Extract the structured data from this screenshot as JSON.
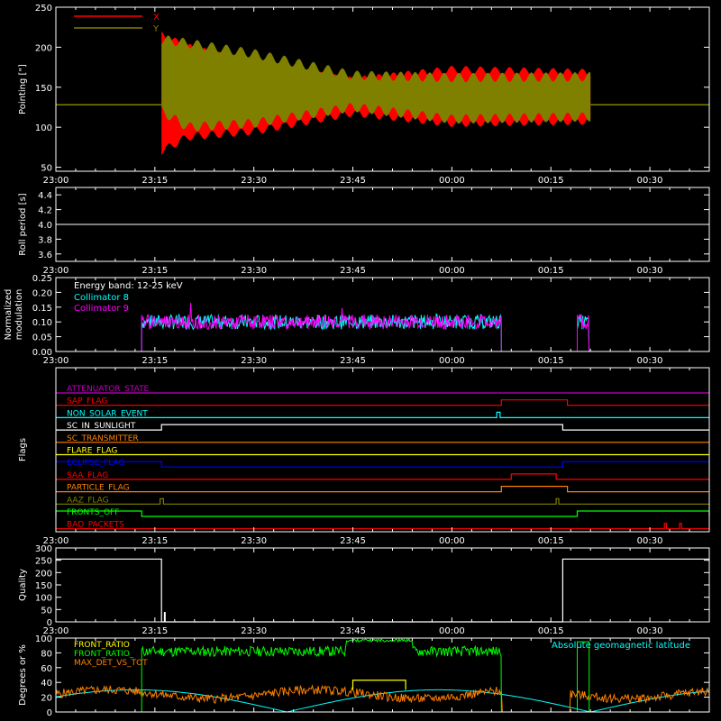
{
  "time_ticks": [
    "23:00",
    "23:15",
    "23:30",
    "23:45",
    "00:00",
    "00:15",
    "00:30"
  ],
  "time_range_minutes": [
    0,
    99
  ],
  "panels": {
    "pointing": {
      "ylabel": "Pointing [\"]",
      "ylim": [
        45,
        250
      ],
      "yticks": [
        "50",
        "100",
        "150",
        "200",
        "250"
      ],
      "legend": [
        {
          "label": "X",
          "color": "#ff0000"
        },
        {
          "label": "Y",
          "color": "#808000"
        }
      ],
      "reference_level": 128,
      "active_range_minutes": [
        16,
        81
      ]
    },
    "roll": {
      "ylabel": "Roll period [s]",
      "ylim": [
        3.5,
        4.5
      ],
      "yticks": [
        "3.6",
        "3.8",
        "4.0",
        "4.2",
        "4.4"
      ],
      "value": 4.0
    },
    "modulation": {
      "ylabel_lines": [
        "Normalized",
        "modulation"
      ],
      "ylim": [
        0,
        0.25
      ],
      "yticks": [
        "0.00",
        "0.05",
        "0.10",
        "0.15",
        "0.20",
        "0.25"
      ],
      "title": "Energy band: 12-25 keV",
      "legend": [
        {
          "label": "Collimator 8",
          "color": "#00ffff"
        },
        {
          "label": "Collimator 9",
          "color": "#ff00ff"
        }
      ],
      "active_ranges_minutes": [
        [
          13,
          67.5
        ],
        [
          79,
          80.8
        ]
      ],
      "level": 0.1
    },
    "flags": {
      "ylabel": "Flags",
      "items": [
        {
          "name": "ATTENUATOR_STATE",
          "color": "#c000c0",
          "segments": []
        },
        {
          "name": "SAP_FLAG",
          "color": "#ff0000",
          "segments": [
            [
              67.5,
              77.5
            ]
          ]
        },
        {
          "name": "NON_SOLAR_EVENT",
          "color": "#00ffff",
          "segments": [
            [
              66.8,
              67.3
            ]
          ]
        },
        {
          "name": "SC_IN_SUNLIGHT",
          "color": "#ffffff",
          "segments": [
            [
              16,
              76.8
            ]
          ]
        },
        {
          "name": "SC_TRANSMITTER",
          "color": "#ff8000",
          "segments": []
        },
        {
          "name": "FLARE_FLAG",
          "color": "#ffff00",
          "segments": []
        },
        {
          "name": "ECLIPSE_FLAG",
          "color": "#0000ff",
          "segments": [
            [
              0,
              16
            ],
            [
              76.8,
              99
            ]
          ]
        },
        {
          "name": "SAA_FLAG",
          "color": "#ff0000",
          "segments": [
            [
              69,
              75.8
            ]
          ]
        },
        {
          "name": "PARTICLE_FLAG",
          "color": "#ff8000",
          "segments": [
            [
              67.5,
              77.5
            ]
          ]
        },
        {
          "name": "AAZ_FLAG",
          "color": "#808000",
          "segments": [
            [
              15.8,
              16.3
            ],
            [
              75.8,
              76.2
            ]
          ]
        },
        {
          "name": "FRONTS_OFF",
          "color": "#00ff00",
          "segments": [
            [
              0,
              13
            ],
            [
              79,
              99
            ]
          ]
        },
        {
          "name": "BAD_PACKETS",
          "color": "#ff0000",
          "segments": [
            [
              92.2,
              92.5
            ],
            [
              94.5,
              94.8
            ]
          ]
        }
      ]
    },
    "quality": {
      "ylabel": "Quality",
      "ylim": [
        0,
        300
      ],
      "yticks": [
        "0",
        "50",
        "100",
        "150",
        "200",
        "250",
        "300"
      ],
      "levels": [
        {
          "from": 0,
          "to": 16,
          "value": 255
        },
        {
          "from": 16,
          "to": 76.8,
          "value": 0
        },
        {
          "from": 76.8,
          "to": 99,
          "value": 255
        }
      ],
      "spike": {
        "at": 16.5,
        "value": 40
      }
    },
    "geomag": {
      "ylabel": "Degrees or %",
      "ylim": [
        0,
        100
      ],
      "yticks": [
        "0",
        "20",
        "40",
        "60",
        "80",
        "100"
      ],
      "legend": [
        {
          "label": "FRONT_RATIO",
          "color": "#ffff00"
        },
        {
          "label": "FRONT_RATIO_",
          "color": "#00ff00"
        },
        {
          "label": "MAX_DET_VS_TOT",
          "color": "#ff8000"
        }
      ],
      "right_label": {
        "label": "Absolute geomagnetic latitude",
        "color": "#00ffff"
      }
    }
  },
  "chart_data": [
    {
      "type": "line",
      "ylabel": "Pointing [\"]",
      "ylim": [
        45,
        250
      ],
      "legend": [
        "X",
        "Y"
      ],
      "series": [
        {
          "name": "X",
          "envelope_min_minutes": [
            16,
            20,
            30,
            45,
            60,
            81
          ],
          "upper": [
            215,
            200,
            178,
            158,
            172,
            168
          ],
          "lower": [
            70,
            88,
            95,
            118,
            105,
            108
          ]
        },
        {
          "name": "Y",
          "envelope_min_minutes": [
            16,
            20,
            30,
            45,
            60,
            81
          ],
          "upper": [
            210,
            205,
            192,
            165,
            162,
            163
          ],
          "lower": [
            120,
            100,
            105,
            125,
            110,
            113
          ]
        }
      ]
    },
    {
      "type": "line",
      "ylabel": "Roll period [s]",
      "ylim": [
        3.5,
        4.5
      ],
      "values_constant": 4.0
    },
    {
      "type": "line",
      "ylabel": "Normalized modulation",
      "title": "Energy band: 12-25 keV",
      "ylim": [
        0,
        0.25
      ],
      "series": [
        {
          "name": "Collimator 8",
          "typical": 0.1
        },
        {
          "name": "Collimator 9",
          "typical": 0.1
        }
      ]
    },
    {
      "type": "line",
      "ylabel": "Quality",
      "ylim": [
        0,
        300
      ]
    },
    {
      "type": "line",
      "ylabel": "Degrees or %",
      "ylim": [
        0,
        100
      ],
      "series": [
        {
          "name": "FRONT_RATIO",
          "typical": 40
        },
        {
          "name": "FRONT_RATIO_",
          "typical": 82
        },
        {
          "name": "MAX_DET_VS_TOT",
          "typical": 25
        },
        {
          "name": "Absolute geomagnetic latitude"
        }
      ]
    }
  ]
}
